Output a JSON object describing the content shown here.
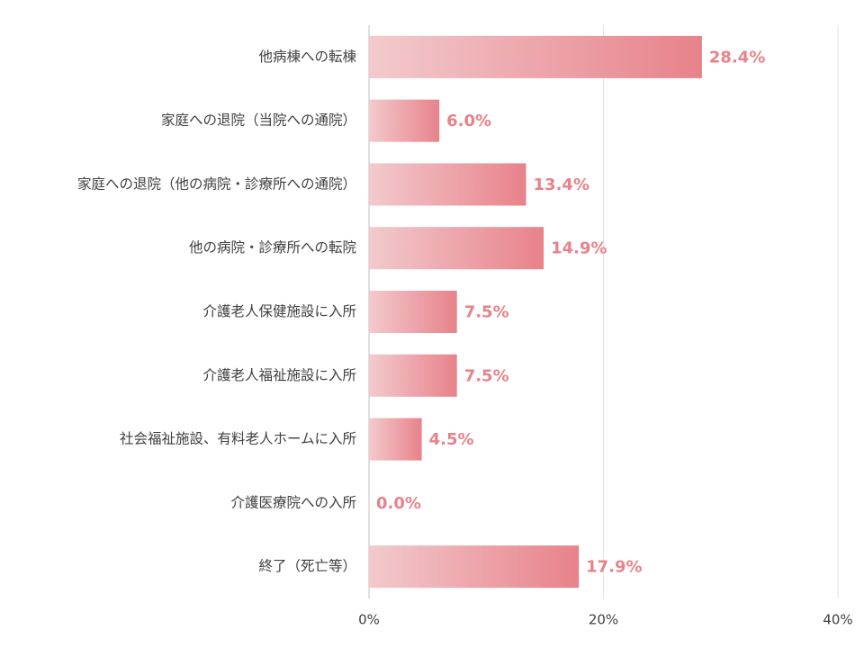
{
  "chart_data": {
    "type": "hbar",
    "categories": [
      "他病棟への転棟",
      "家庭への退院（当院への通院）",
      "家庭への退院（他の病院・診療所への通院）",
      "他の病院・診療所への転院",
      "介護老人保健施設に入所",
      "介護老人福祉施設に入所",
      "社会福祉施設、有料老人ホームに入所",
      "介護医療院への入所",
      "終了（死亡等）"
    ],
    "values": [
      28.4,
      6.0,
      13.4,
      14.9,
      7.5,
      7.5,
      4.5,
      0.0,
      17.9
    ],
    "value_labels": [
      "28.4%",
      "6.0%",
      "13.4%",
      "14.9%",
      "7.5%",
      "7.5%",
      "4.5%",
      "0.0%",
      "17.9%"
    ],
    "colors": [
      "#f2cacd",
      "#e8828a"
    ],
    "xlim": [
      0,
      40
    ],
    "xticks": [
      {
        "value": 0,
        "label": "0%"
      },
      {
        "value": 20,
        "label": "20%"
      },
      {
        "value": 40,
        "label": "40%"
      }
    ],
    "grid": true
  }
}
